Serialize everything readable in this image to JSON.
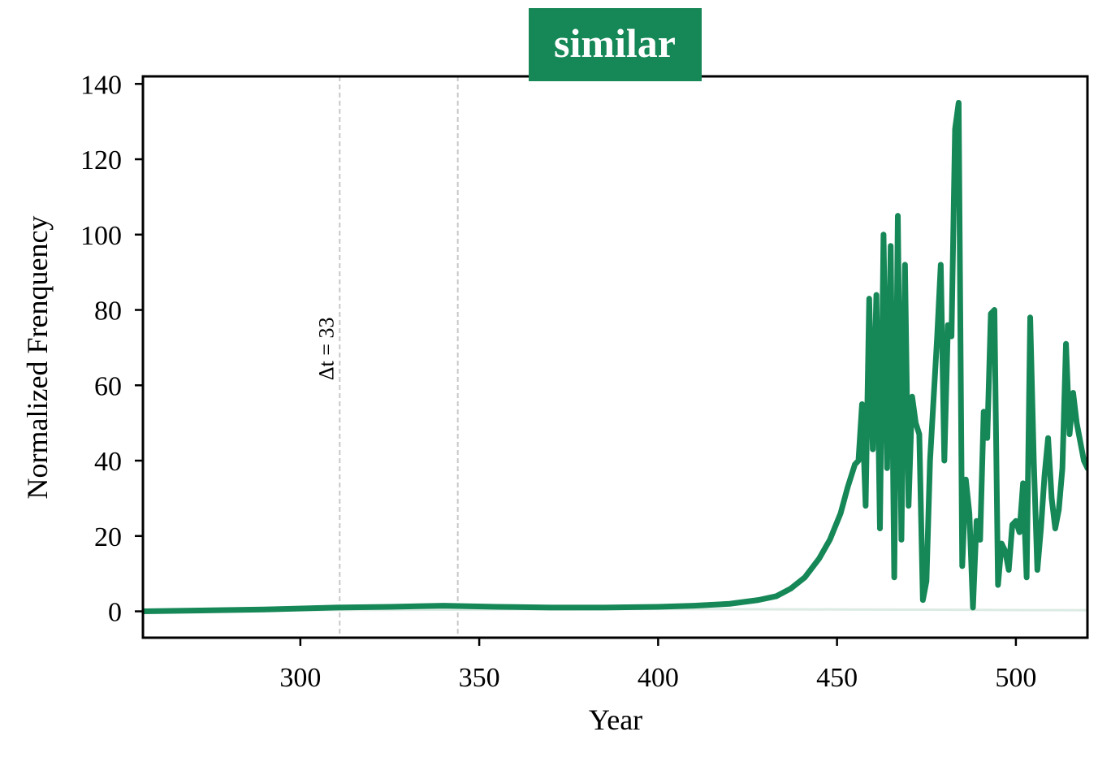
{
  "chart_data": {
    "type": "line",
    "title": "similar",
    "xlabel": "Year",
    "ylabel": "Normalized Frenquency",
    "xlim": [
      256,
      520
    ],
    "ylim": [
      -7,
      142
    ],
    "xticks": [
      300,
      350,
      400,
      450,
      500
    ],
    "yticks": [
      0,
      20,
      40,
      60,
      80,
      100,
      120,
      140
    ],
    "vlines": [
      311,
      344
    ],
    "annotation": {
      "text": "Δt = 33",
      "x": 311,
      "y": 60
    },
    "colors": {
      "series": "#168757",
      "baseline": "#dcebe4",
      "vline": "#c8c8c8",
      "title_bg": "#168757"
    },
    "series": [
      {
        "x": [
          256,
          270,
          290,
          310,
          325,
          340,
          355,
          370,
          385,
          400,
          410,
          420,
          428,
          433,
          437,
          441,
          445,
          448,
          451,
          453,
          455,
          456,
          457,
          458,
          459,
          460,
          461,
          462,
          463,
          464,
          465,
          466,
          467,
          468,
          469,
          470,
          471,
          472,
          473,
          474,
          475,
          476,
          478,
          479,
          480,
          481,
          482,
          483,
          484,
          485,
          486,
          487,
          488,
          489,
          490,
          491,
          492,
          493,
          494,
          495,
          496,
          497,
          498,
          499,
          500,
          501,
          502,
          503,
          504,
          505,
          506,
          507,
          508,
          509,
          510,
          511,
          512,
          513,
          514,
          515,
          516,
          517,
          518,
          519,
          520
        ],
        "y": [
          0,
          0.2,
          0.5,
          1,
          1.2,
          1.5,
          1.2,
          1,
          1,
          1.2,
          1.5,
          2,
          3,
          4,
          6,
          9,
          14,
          19,
          26,
          33,
          39,
          40,
          55,
          28,
          83,
          43,
          84,
          22,
          100,
          38,
          97,
          9,
          105,
          19,
          92,
          28,
          57,
          50,
          47,
          3,
          8,
          40,
          73,
          92,
          40,
          76,
          73,
          128,
          135,
          12,
          35,
          26,
          1,
          24,
          19,
          53,
          46,
          79,
          80,
          7,
          18,
          16,
          11,
          23,
          24,
          21,
          34,
          9,
          78,
          40,
          11,
          22,
          36,
          46,
          30,
          22,
          27,
          38,
          71,
          47,
          58,
          50,
          45,
          40,
          38
        ]
      }
    ],
    "baseline": {
      "x": [
        256,
        400,
        450,
        520
      ],
      "y": [
        0.2,
        0.6,
        0.5,
        0.3
      ]
    }
  }
}
